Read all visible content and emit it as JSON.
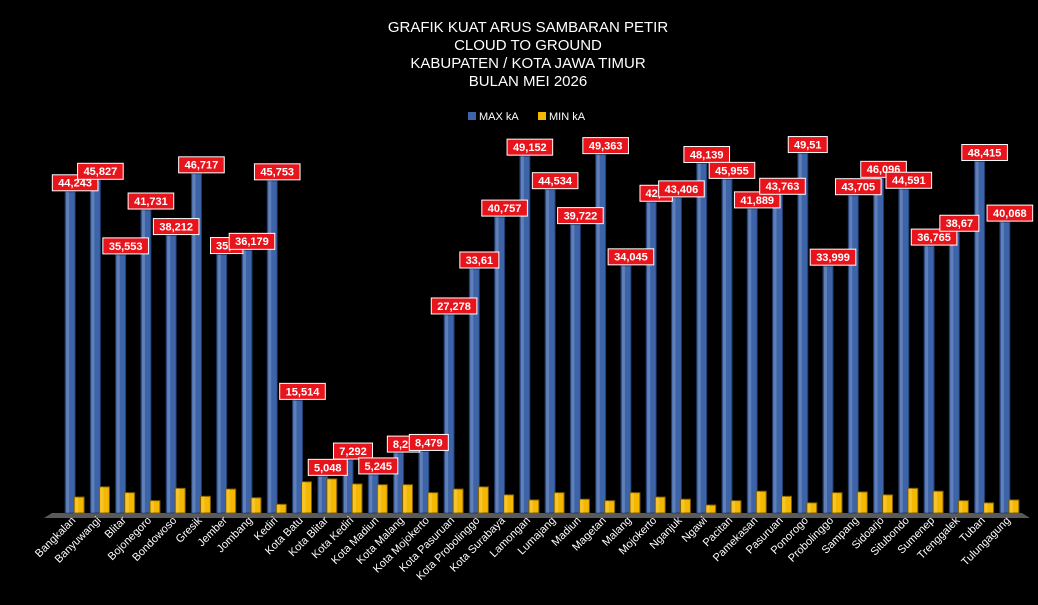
{
  "chart_data": {
    "type": "bar",
    "title": [
      "GRAFIK KUAT ARUS SAMBARAN PETIR",
      "CLOUD TO GROUND",
      "KABUPATEN / KOTA JAWA  TIMUR",
      "BULAN MEI 2026"
    ],
    "categories": [
      "Bangkalan",
      "Banyuwangi",
      "Blitar",
      "Bojonegoro",
      "Bondowoso",
      "Gresik",
      "Jember",
      "Jombang",
      "Kediri",
      "Kota Batu",
      "Kota Blitar",
      "Kota Kediri",
      "Kota Madiun",
      "Kota Malang",
      "Kota Mojokerto",
      "Kota Pasuruan",
      "Kota Probolinggo",
      "Kota Surabaya",
      "Lamongan",
      "Lumajang",
      "Madiun",
      "Magetan",
      "Malang",
      "Mojokerto",
      "Nganjuk",
      "Ngawi",
      "Pacitan",
      "Pamekasan",
      "Pasuruan",
      "Ponorogo",
      "Probolinggo",
      "Sampang",
      "Sidoarjo",
      "Situbondo",
      "Sumenep",
      "Trenggalek",
      "Tuban",
      "Tulungagung"
    ],
    "series": [
      {
        "name": "MAX kA",
        "color": "#3d64a8",
        "values": [
          44.243,
          45.827,
          35.553,
          41.731,
          38.212,
          46.717,
          35.6,
          36.179,
          45.753,
          15.514,
          5.048,
          7.292,
          5.245,
          8.25,
          8.479,
          27.278,
          33.61,
          40.757,
          49.152,
          44.534,
          39.722,
          49.363,
          34.045,
          42.8,
          43.406,
          48.139,
          45.955,
          41.889,
          43.763,
          49.51,
          33.999,
          43.705,
          46.096,
          44.591,
          36.765,
          38.67,
          48.415,
          40.068
        ],
        "value_labels": [
          "44,243",
          "45,827",
          "35,553",
          "41,731",
          "38,212",
          "46,717",
          "35,6",
          "36,179",
          "45,753",
          "15,514",
          "5,048",
          "7,292",
          "5,245",
          "8,25",
          "8,479",
          "27,278",
          "33,61",
          "40,757",
          "49,152",
          "44,534",
          "39,722",
          "49,363",
          "34,045",
          "42,8",
          "43,406",
          "48,139",
          "45,955",
          "41,889",
          "43,763",
          "49,51",
          "33,999",
          "43,705",
          "46,096",
          "44,591",
          "36,765",
          "38,67",
          "48,415",
          "40,068"
        ]
      },
      {
        "name": "MIN kA",
        "color": "#f5b800",
        "values": [
          2.2,
          3.6,
          2.8,
          1.7,
          3.4,
          2.3,
          3.3,
          2.1,
          1.2,
          4.3,
          4.7,
          4.0,
          3.9,
          3.9,
          2.8,
          3.3,
          3.6,
          2.5,
          1.8,
          2.8,
          1.9,
          1.7,
          2.8,
          2.2,
          1.9,
          1.1,
          1.7,
          3.0,
          2.3,
          1.4,
          2.8,
          2.9,
          2.5,
          3.4,
          3.0,
          1.7,
          1.4,
          1.8
        ]
      }
    ],
    "ylim": [
      0,
      50
    ]
  }
}
